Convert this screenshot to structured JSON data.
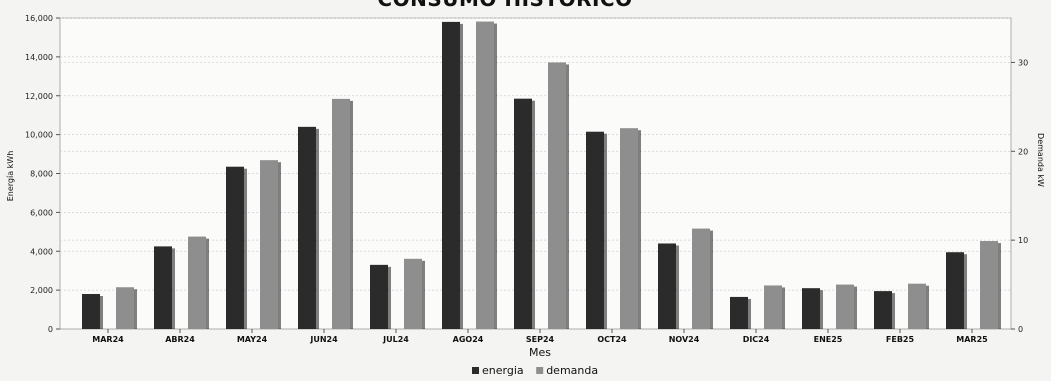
{
  "chart_data": {
    "type": "bar",
    "title": "CONSUMO HISTORICO",
    "xlabel": "Mes",
    "ylabel_left": "Energía kWh",
    "ylabel_right": "Demanda kW",
    "categories": [
      "MAR24",
      "ABR24",
      "MAY24",
      "JUN24",
      "JUL24",
      "AGO24",
      "SEP24",
      "OCT24",
      "NOV24",
      "DIC24",
      "ENE25",
      "FEB25",
      "MAR25"
    ],
    "ylim_left": [
      0,
      16000
    ],
    "yticks_left": [
      "0",
      "2,000",
      "4,000",
      "6,000",
      "8,000",
      "10,000",
      "12,000",
      "14,000",
      "16,000"
    ],
    "ylim_right": [
      0,
      35
    ],
    "yticks_right": [
      "0",
      "10",
      "20",
      "30"
    ],
    "grid": true,
    "legend_position": "bottom",
    "series": [
      {
        "name": "energia",
        "axis": "left",
        "color": "#2b2b2b",
        "values": [
          1800,
          4250,
          8350,
          10400,
          3300,
          15800,
          11850,
          10150,
          4400,
          1650,
          2100,
          1950,
          3950
        ]
      },
      {
        "name": "demanda",
        "axis": "right",
        "color": "#8e8e8e",
        "values": [
          4.7,
          10.4,
          19.0,
          25.9,
          7.9,
          34.6,
          30.0,
          22.6,
          11.3,
          4.9,
          5.0,
          5.1,
          9.9
        ]
      }
    ]
  }
}
